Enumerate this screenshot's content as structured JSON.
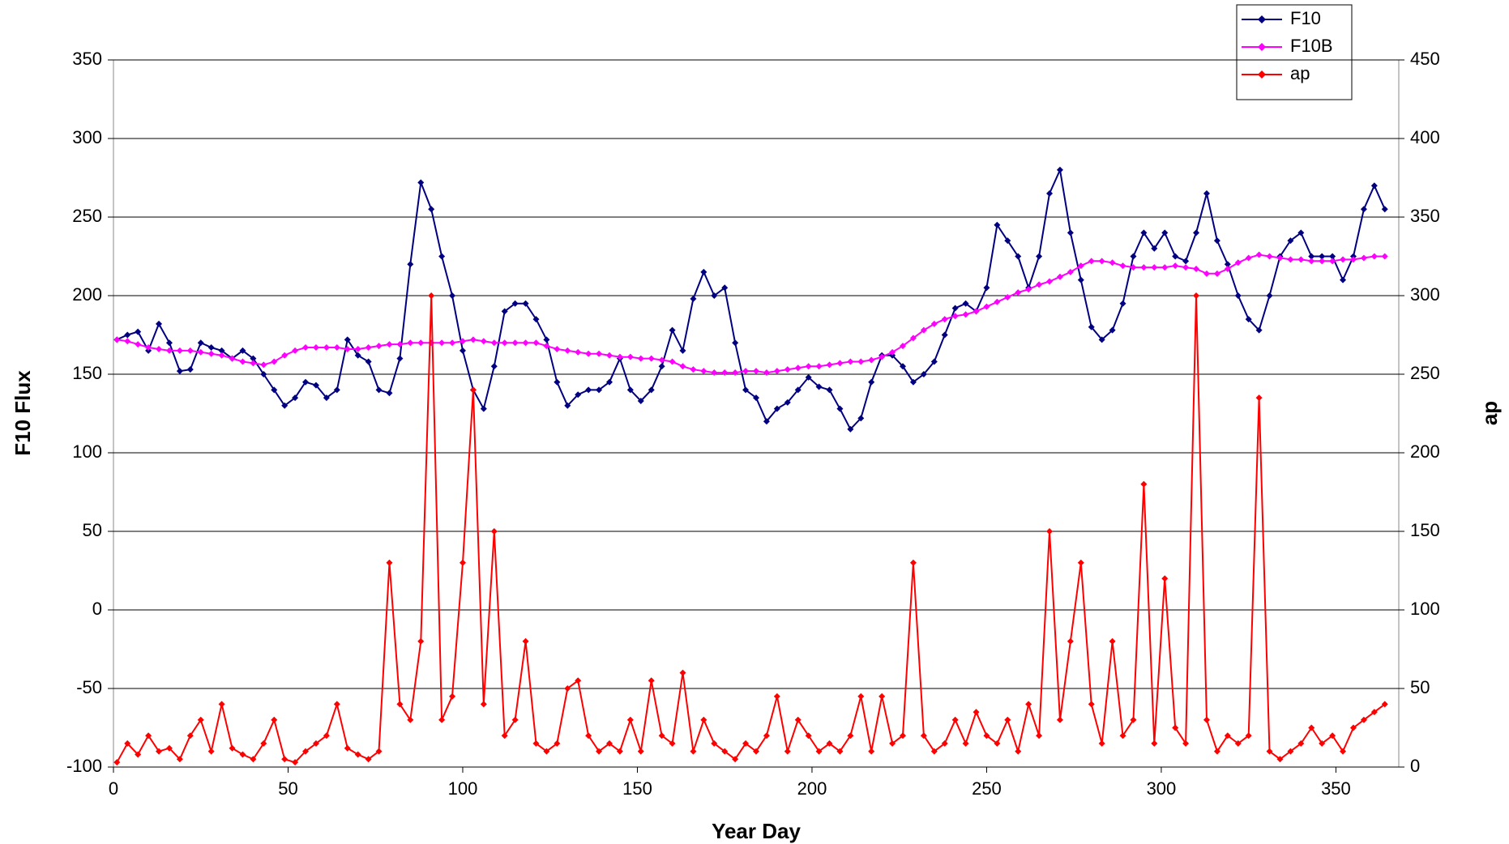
{
  "chart_data": {
    "type": "line",
    "x_label": "Year Day",
    "y_label": "F10 Flux",
    "y2_label": "ap",
    "xlim": [
      0,
      368
    ],
    "xticks": [
      0,
      50,
      100,
      150,
      200,
      250,
      300,
      350
    ],
    "ylim": [
      -100,
      350
    ],
    "yticks": [
      -100,
      -50,
      0,
      50,
      100,
      150,
      200,
      250,
      300,
      350
    ],
    "y2lim": [
      0,
      450
    ],
    "y2ticks": [
      0,
      50,
      100,
      150,
      200,
      250,
      300,
      350,
      400,
      450
    ],
    "grid": true,
    "legend": "top-right",
    "x": [
      1,
      4,
      7,
      10,
      13,
      16,
      19,
      22,
      25,
      28,
      31,
      34,
      37,
      40,
      43,
      46,
      49,
      52,
      55,
      58,
      61,
      64,
      67,
      70,
      73,
      76,
      79,
      82,
      85,
      88,
      91,
      94,
      97,
      100,
      103,
      106,
      109,
      112,
      115,
      118,
      121,
      124,
      127,
      130,
      133,
      136,
      139,
      142,
      145,
      148,
      151,
      154,
      157,
      160,
      163,
      166,
      169,
      172,
      175,
      178,
      181,
      184,
      187,
      190,
      193,
      196,
      199,
      202,
      205,
      208,
      211,
      214,
      217,
      220,
      223,
      226,
      229,
      232,
      235,
      238,
      241,
      244,
      247,
      250,
      253,
      256,
      259,
      262,
      265,
      268,
      271,
      274,
      277,
      280,
      283,
      286,
      289,
      292,
      295,
      298,
      301,
      304,
      307,
      310,
      313,
      316,
      319,
      322,
      325,
      328,
      331,
      334,
      337,
      340,
      343,
      346,
      349,
      352,
      355,
      358,
      361,
      364
    ],
    "series": [
      {
        "name": "F10",
        "color": "#000080",
        "values": [
          172,
          175,
          177,
          165,
          182,
          170,
          152,
          153,
          170,
          167,
          165,
          160,
          165,
          160,
          150,
          140,
          130,
          135,
          145,
          143,
          135,
          140,
          172,
          162,
          158,
          140,
          138,
          160,
          220,
          272,
          255,
          225,
          200,
          165,
          140,
          128,
          155,
          190,
          195,
          195,
          185,
          172,
          145,
          130,
          137,
          140,
          140,
          145,
          160,
          140,
          133,
          140,
          155,
          178,
          165,
          198,
          215,
          200,
          205,
          170,
          140,
          135,
          120,
          128,
          132,
          140,
          148,
          142,
          140,
          128,
          115,
          122,
          145,
          162,
          162,
          155,
          145,
          150,
          158,
          175,
          192,
          195,
          190,
          205,
          245,
          235,
          225,
          205,
          225,
          265,
          280,
          240,
          210,
          180,
          172,
          178,
          195,
          225,
          240,
          230,
          240,
          225,
          222,
          240,
          265,
          235,
          220,
          200,
          185,
          178,
          200,
          225,
          235,
          240,
          225,
          225,
          225,
          210,
          225,
          255,
          270,
          255
        ]
      },
      {
        "name": "F10B",
        "color": "#ff00ff",
        "values": [
          172,
          171,
          169,
          167,
          166,
          165,
          165,
          165,
          164,
          163,
          162,
          160,
          158,
          157,
          156,
          158,
          162,
          165,
          167,
          167,
          167,
          167,
          166,
          166,
          167,
          168,
          169,
          169,
          170,
          170,
          170,
          170,
          170,
          171,
          172,
          171,
          170,
          170,
          170,
          170,
          170,
          168,
          166,
          165,
          164,
          163,
          163,
          162,
          161,
          161,
          160,
          160,
          159,
          158,
          155,
          153,
          152,
          151,
          151,
          151,
          152,
          152,
          151,
          152,
          153,
          154,
          155,
          155,
          156,
          157,
          158,
          158,
          159,
          161,
          164,
          168,
          173,
          178,
          182,
          185,
          187,
          188,
          190,
          193,
          196,
          199,
          202,
          204,
          207,
          209,
          212,
          215,
          219,
          222,
          222,
          221,
          219,
          218,
          218,
          218,
          218,
          219,
          218,
          217,
          214,
          214,
          217,
          221,
          224,
          226,
          225,
          224,
          223,
          223,
          222,
          222,
          222,
          223,
          223,
          224,
          225,
          225
        ]
      },
      {
        "name": "ap",
        "color": "#ff0000",
        "axis": "y2",
        "values": [
          3,
          15,
          8,
          20,
          10,
          12,
          5,
          20,
          30,
          10,
          40,
          12,
          8,
          5,
          15,
          30,
          5,
          3,
          10,
          15,
          20,
          40,
          12,
          8,
          5,
          10,
          130,
          40,
          30,
          80,
          300,
          30,
          45,
          130,
          240,
          40,
          150,
          20,
          30,
          80,
          15,
          10,
          15,
          50,
          55,
          20,
          10,
          15,
          10,
          30,
          10,
          55,
          20,
          15,
          60,
          10,
          30,
          15,
          10,
          5,
          15,
          10,
          20,
          45,
          10,
          30,
          20,
          10,
          15,
          10,
          20,
          45,
          10,
          45,
          15,
          20,
          130,
          20,
          10,
          15,
          30,
          15,
          35,
          20,
          15,
          30,
          10,
          40,
          20,
          150,
          30,
          80,
          130,
          40,
          15,
          80,
          20,
          30,
          180,
          15,
          120,
          25,
          15,
          300,
          30,
          10,
          20,
          15,
          20,
          235,
          10,
          5,
          10,
          15,
          25,
          15,
          20,
          10,
          25,
          30,
          35,
          40
        ]
      }
    ]
  }
}
